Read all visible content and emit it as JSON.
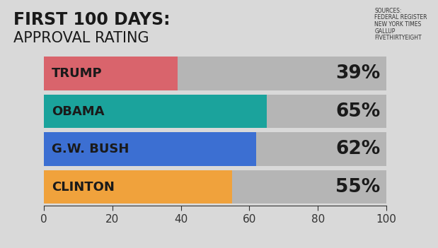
{
  "chart_data": {
    "type": "bar",
    "orientation": "horizontal",
    "title": "FIRST 100 DAYS:",
    "subtitle": "APPROVAL RATING",
    "annotations": [
      "SOURCES:\nFEDERAL REGISTER\nNEW YORK TIMES\nGALLUP\nFIVETHIRTYEIGHT"
    ],
    "categories": [
      "TRUMP",
      "OBAMA",
      "G.W. BUSH",
      "CLINTON"
    ],
    "values": [
      39,
      65,
      62,
      55
    ],
    "value_labels": [
      "39%",
      "65%",
      "62%",
      "55%"
    ],
    "colors": [
      "#d9646c",
      "#1ba39c",
      "#3c6fd2",
      "#f0a23c"
    ],
    "xlim": [
      0,
      100
    ],
    "xticks": [
      0,
      20,
      40,
      60,
      80,
      100
    ],
    "data_labels": true,
    "tick_labels": "x",
    "grid": false
  }
}
